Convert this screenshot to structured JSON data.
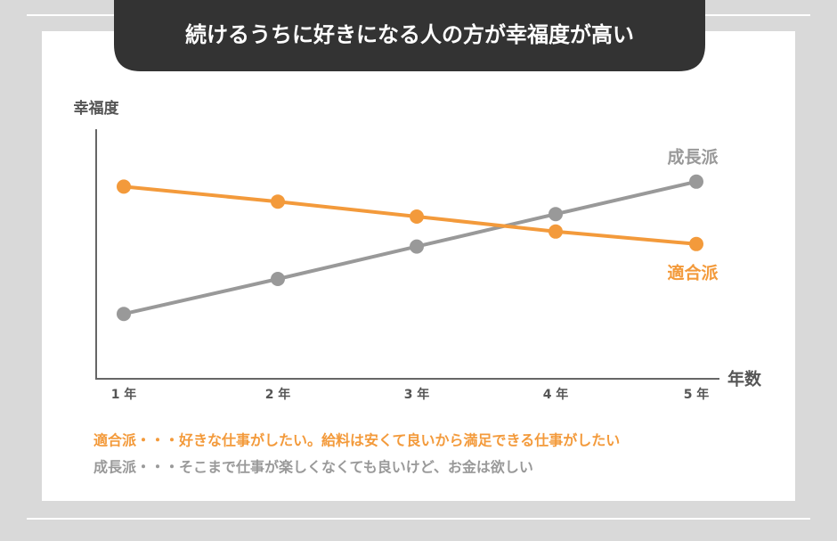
{
  "chart_data": {
    "type": "line",
    "title": "続けるうちに好きになる人の方が幸福度が高い",
    "y_label": "幸福度",
    "x_label": "年数",
    "categories": [
      "1 年",
      "2 年",
      "3 年",
      "4 年",
      "5 年"
    ],
    "ylim": [
      0,
      10
    ],
    "series": [
      {
        "name": "成長派",
        "color": "#999999",
        "values": [
          2.6,
          4.0,
          5.3,
          6.6,
          7.9
        ]
      },
      {
        "name": "適合派",
        "color": "#f39a3b",
        "values": [
          7.7,
          7.1,
          6.5,
          5.9,
          5.4
        ]
      }
    ],
    "annotations": [
      {
        "text": "適合派・・・好きな仕事がしたい。給料は安くて良いから満足できる仕事がしたい",
        "color": "#f39a3b"
      },
      {
        "text": "成長派・・・そこまで仕事が楽しくなくても良いけど、お金は欲しい",
        "color": "#999999"
      }
    ]
  }
}
